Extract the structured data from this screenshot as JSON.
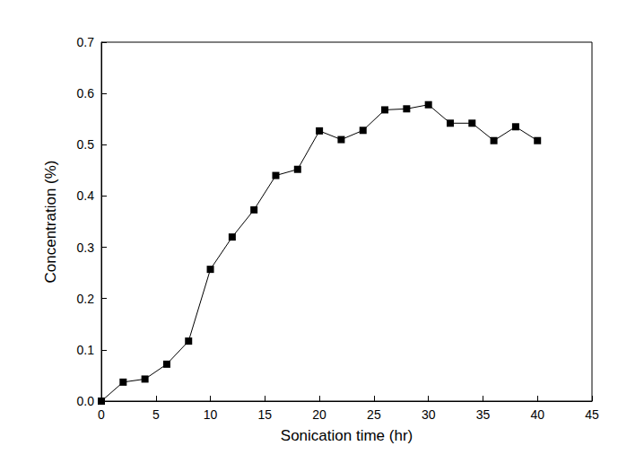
{
  "chart_data": {
    "type": "line",
    "xlabel": "Sonication time (hr)",
    "ylabel": "Concentration (%)",
    "x": [
      0,
      2,
      4,
      6,
      8,
      10,
      12,
      14,
      16,
      18,
      20,
      22,
      24,
      26,
      28,
      30,
      32,
      34,
      36,
      38,
      40
    ],
    "values": [
      0.0,
      0.037,
      0.043,
      0.072,
      0.117,
      0.257,
      0.32,
      0.373,
      0.44,
      0.452,
      0.527,
      0.51,
      0.528,
      0.568,
      0.57,
      0.578,
      0.542,
      0.542,
      0.508,
      0.535,
      0.508
    ],
    "color": "#000000",
    "marker": "square",
    "line_style": "solid",
    "xlim": [
      0,
      45
    ],
    "xticks": [
      0,
      5,
      10,
      15,
      20,
      25,
      30,
      35,
      40,
      45
    ],
    "ylim": [
      0,
      0.7
    ],
    "yticks": [
      {
        "value": 0,
        "label": "0.0"
      },
      0.1,
      0.2,
      0.3,
      0.4,
      0.5,
      0.6,
      0.7
    ],
    "grid": false
  }
}
